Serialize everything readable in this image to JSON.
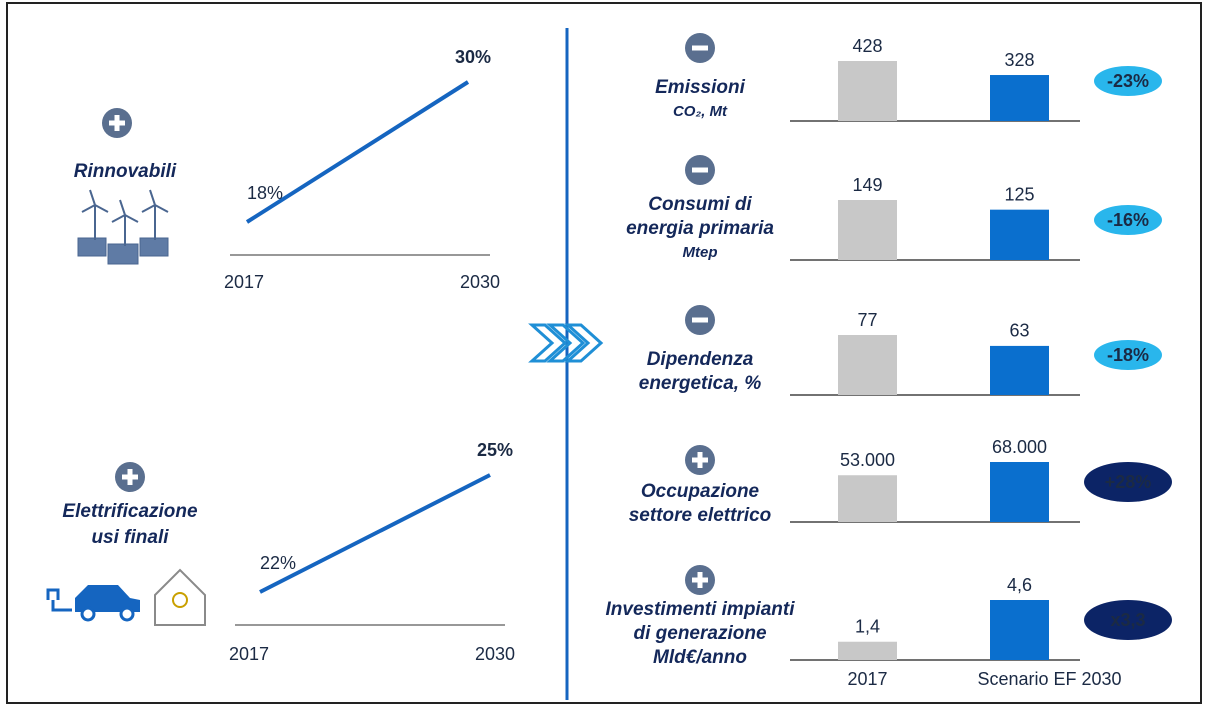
{
  "chart_data": [
    {
      "type": "line",
      "title": [
        "Rinnovabili"
      ],
      "categories": [
        "2017",
        "2030"
      ],
      "values": [
        18,
        30
      ],
      "value_labels": [
        "18%",
        "30%"
      ],
      "color": "#1565c0"
    },
    {
      "type": "line",
      "title": [
        "Elettrificazione",
        "usi finali"
      ],
      "categories": [
        "2017",
        "2030"
      ],
      "values": [
        22,
        25
      ],
      "value_labels": [
        "22%",
        "25%"
      ],
      "color": "#1565c0"
    },
    {
      "type": "bar",
      "title": [
        "Emissioni"
      ],
      "subtitle": "CO₂, Mt",
      "categories": [
        null,
        null
      ],
      "values": [
        428,
        328
      ],
      "colors": [
        "#c8c8c8",
        "#0a6fce"
      ],
      "annotation": "-23%"
    },
    {
      "type": "bar",
      "title": [
        "Consumi di",
        "energia primaria"
      ],
      "subtitle": "Mtep",
      "categories": [
        null,
        null
      ],
      "values": [
        149,
        125
      ],
      "colors": [
        "#c8c8c8",
        "#0a6fce"
      ],
      "annotation": "-16%"
    },
    {
      "type": "bar",
      "title": [
        "Dipendenza",
        "energetica, %"
      ],
      "categories": [
        null,
        null
      ],
      "values": [
        77,
        63
      ],
      "colors": [
        "#c8c8c8",
        "#0a6fce"
      ],
      "annotation": "-18%"
    },
    {
      "type": "bar",
      "title": [
        "Occupazione",
        "settore elettrico"
      ],
      "categories": [
        null,
        null
      ],
      "values": [
        53000,
        68000
      ],
      "value_labels": [
        "53.000",
        "68.000"
      ],
      "colors": [
        "#c8c8c8",
        "#0a6fce"
      ],
      "annotation": "+28%"
    },
    {
      "type": "bar",
      "title": [
        "Investimenti impianti",
        "di generazione",
        "Mld€/anno"
      ],
      "categories": [
        "2017",
        "Scenario EF 2030"
      ],
      "values": [
        1.4,
        4.6
      ],
      "value_labels": [
        "1,4",
        "4,6"
      ],
      "colors": [
        "#c8c8c8",
        "#0a6fce"
      ],
      "annotation": "x3,3"
    }
  ]
}
